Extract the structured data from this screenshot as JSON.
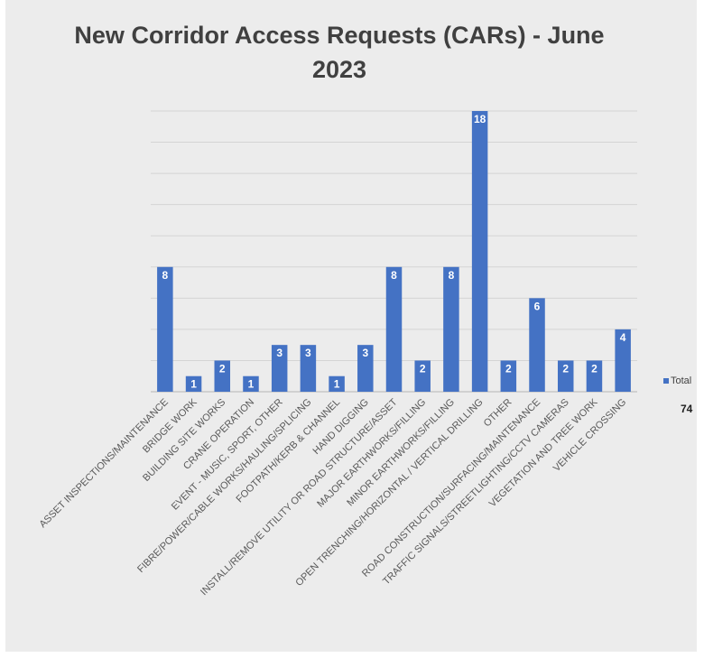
{
  "chart_data": {
    "type": "bar",
    "title": "New Corridor Access Requests (CARs) - June 2023",
    "categories": [
      "ASSET INSPECTIONS/MAINTENANCE",
      "BRIDGE WORK",
      "BUILDING SITE WORKS",
      "CRANE OPERATION",
      "EVENT - MUSIC, SPORT, OTHER",
      "FIBRE/POWER/CABLE WORKS/HAULING/SPLICING",
      "FOOTPATH/KERB & CHANNEL",
      "HAND DIGGING",
      "INSTALL/REMOVE UTILITY OR ROAD STRUCTURE/ASSET",
      "MAJOR EARTHWORKS/FILLING",
      "MINOR EARTHWORKS/FILLING",
      "OPEN TRENCHING/HORIZONTAL / VERTICAL DRILLING",
      "OTHER",
      "ROAD CONSTRUCTION/SURFACING/MAINTENANCE",
      "TRAFFIC SIGNALS/STREETLIGHTING/CCTV CAMERAS",
      "VEGETATION AND TREE WORK",
      "VEHICLE CROSSING"
    ],
    "series": [
      {
        "name": "Total",
        "values": [
          8,
          1,
          2,
          1,
          3,
          3,
          1,
          3,
          8,
          2,
          8,
          18,
          2,
          6,
          2,
          2,
          4
        ]
      }
    ],
    "ylim": [
      0,
      18
    ],
    "grid": true,
    "legend_position": "right",
    "bar_color": "#4472c4",
    "data_label_color": "#ffffff",
    "total": "74"
  }
}
